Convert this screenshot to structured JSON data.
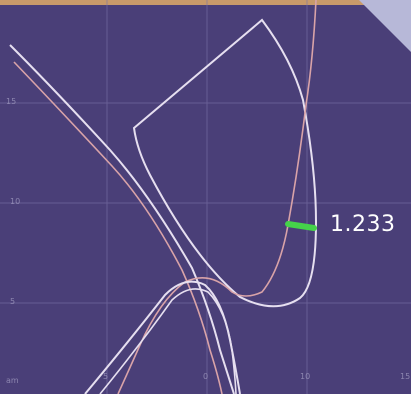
{
  "plot": {
    "background": "#4a3f78",
    "grid_color": "#7b71a8",
    "curve_color_light": "#e6dff0",
    "curve_color_pink": "#d9a3a8",
    "marker_color": "#45d34a"
  },
  "readout": {
    "value": "1.233"
  },
  "axes": {
    "y_ticks": [
      "15",
      "10",
      "5"
    ],
    "x_ticks": [
      "am",
      "5",
      "0",
      "10",
      "15"
    ]
  }
}
